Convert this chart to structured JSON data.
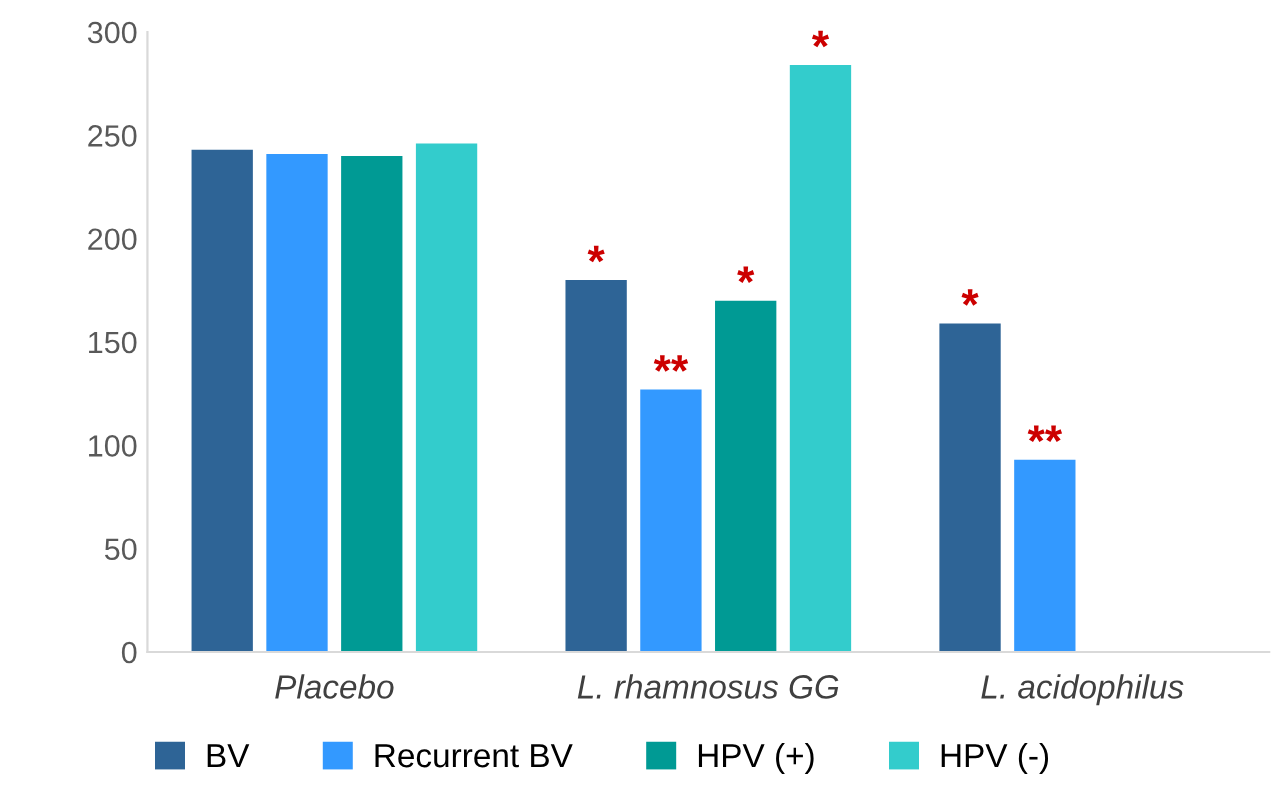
{
  "chart_data": {
    "type": "bar",
    "categories": [
      "Placebo",
      "L. rhamnosus GG",
      "L. acidophilus"
    ],
    "series": [
      {
        "name": "BV",
        "color": "#2e6496",
        "values": [
          243,
          180,
          159
        ],
        "value_labels": [
          null,
          "*",
          "*"
        ]
      },
      {
        "name": "Recurrent BV",
        "color": "#3399ff",
        "values": [
          241,
          127,
          93
        ],
        "value_labels": [
          null,
          "**",
          "**"
        ]
      },
      {
        "name": "HPV (+)",
        "color": "#009a94",
        "values": [
          240,
          170,
          null
        ],
        "value_labels": [
          null,
          "*",
          null
        ]
      },
      {
        "name": "HPV (-)",
        "color": "#33cccc",
        "values": [
          246,
          284,
          null
        ],
        "value_labels": [
          null,
          "*",
          null
        ]
      }
    ],
    "ylim": [
      0,
      300
    ],
    "yticks": [
      0,
      50,
      100,
      150,
      200,
      250,
      300
    ],
    "grid": false,
    "legend": "bottom"
  }
}
